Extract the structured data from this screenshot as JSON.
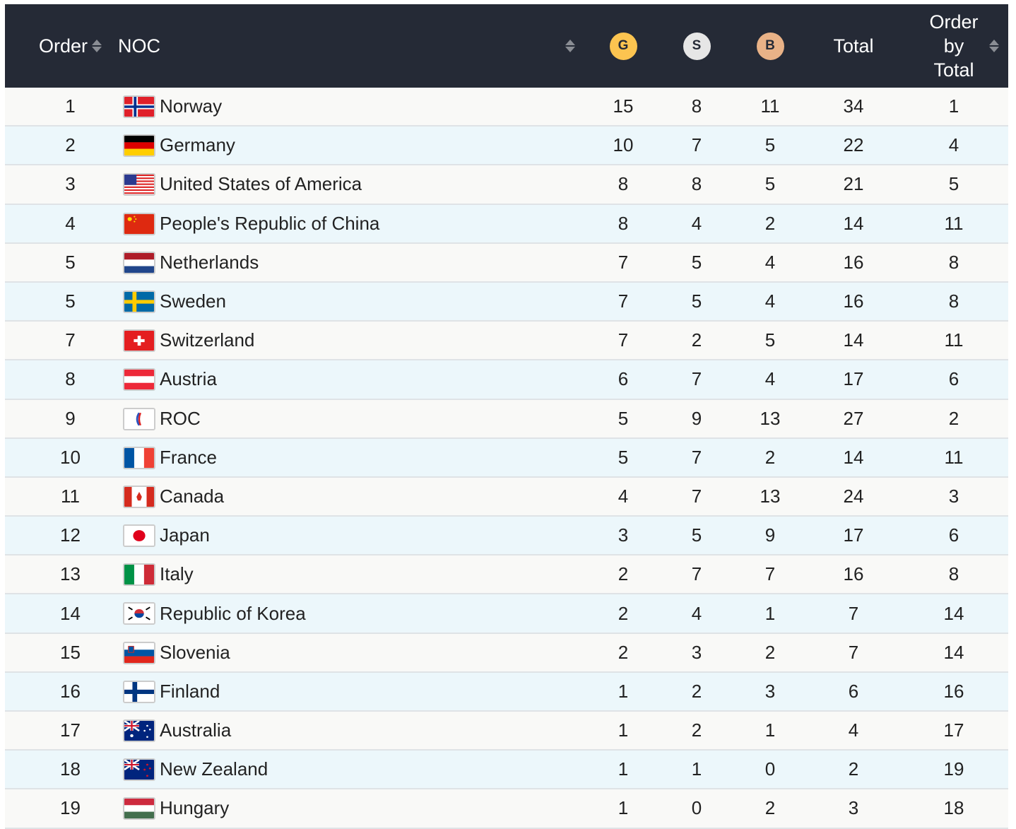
{
  "header": {
    "order": "Order",
    "noc": "NOC",
    "gold": "G",
    "silver": "S",
    "bronze": "B",
    "total": "Total",
    "order_by_total": "Order by Total"
  },
  "colors": {
    "header_bg": "#252a36",
    "gold": "#fcc450",
    "silver": "#e6e6e6",
    "bronze": "#e9b287"
  },
  "rows": [
    {
      "order": "1",
      "noc": "Norway",
      "flag": "norway",
      "g": "15",
      "s": "8",
      "b": "11",
      "total": "34",
      "obt": "1"
    },
    {
      "order": "2",
      "noc": "Germany",
      "flag": "germany",
      "g": "10",
      "s": "7",
      "b": "5",
      "total": "22",
      "obt": "4"
    },
    {
      "order": "3",
      "noc": "United States of America",
      "flag": "usa",
      "g": "8",
      "s": "8",
      "b": "5",
      "total": "21",
      "obt": "5"
    },
    {
      "order": "4",
      "noc": "People's Republic of China",
      "flag": "china",
      "g": "8",
      "s": "4",
      "b": "2",
      "total": "14",
      "obt": "11"
    },
    {
      "order": "5",
      "noc": "Netherlands",
      "flag": "netherlands",
      "g": "7",
      "s": "5",
      "b": "4",
      "total": "16",
      "obt": "8"
    },
    {
      "order": "5",
      "noc": "Sweden",
      "flag": "sweden",
      "g": "7",
      "s": "5",
      "b": "4",
      "total": "16",
      "obt": "8"
    },
    {
      "order": "7",
      "noc": "Switzerland",
      "flag": "switzerland",
      "g": "7",
      "s": "2",
      "b": "5",
      "total": "14",
      "obt": "11"
    },
    {
      "order": "8",
      "noc": "Austria",
      "flag": "austria",
      "g": "6",
      "s": "7",
      "b": "4",
      "total": "17",
      "obt": "6"
    },
    {
      "order": "9",
      "noc": "ROC",
      "flag": "roc",
      "g": "5",
      "s": "9",
      "b": "13",
      "total": "27",
      "obt": "2"
    },
    {
      "order": "10",
      "noc": "France",
      "flag": "france",
      "g": "5",
      "s": "7",
      "b": "2",
      "total": "14",
      "obt": "11"
    },
    {
      "order": "11",
      "noc": "Canada",
      "flag": "canada",
      "g": "4",
      "s": "7",
      "b": "13",
      "total": "24",
      "obt": "3"
    },
    {
      "order": "12",
      "noc": "Japan",
      "flag": "japan",
      "g": "3",
      "s": "5",
      "b": "9",
      "total": "17",
      "obt": "6"
    },
    {
      "order": "13",
      "noc": "Italy",
      "flag": "italy",
      "g": "2",
      "s": "7",
      "b": "7",
      "total": "16",
      "obt": "8"
    },
    {
      "order": "14",
      "noc": "Republic of Korea",
      "flag": "korea",
      "g": "2",
      "s": "4",
      "b": "1",
      "total": "7",
      "obt": "14"
    },
    {
      "order": "15",
      "noc": "Slovenia",
      "flag": "slovenia",
      "g": "2",
      "s": "3",
      "b": "2",
      "total": "7",
      "obt": "14"
    },
    {
      "order": "16",
      "noc": "Finland",
      "flag": "finland",
      "g": "1",
      "s": "2",
      "b": "3",
      "total": "6",
      "obt": "16"
    },
    {
      "order": "17",
      "noc": "Australia",
      "flag": "australia",
      "g": "1",
      "s": "2",
      "b": "1",
      "total": "4",
      "obt": "17"
    },
    {
      "order": "18",
      "noc": "New Zealand",
      "flag": "new-zealand",
      "g": "1",
      "s": "1",
      "b": "0",
      "total": "2",
      "obt": "19"
    },
    {
      "order": "19",
      "noc": "Hungary",
      "flag": "hungary",
      "g": "1",
      "s": "0",
      "b": "2",
      "total": "3",
      "obt": "18"
    }
  ]
}
